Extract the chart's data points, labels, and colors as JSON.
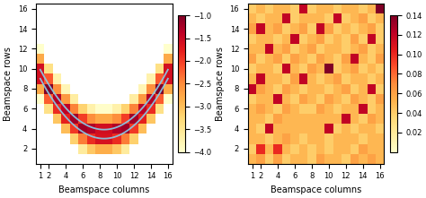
{
  "xlabel": "Beamspace columns",
  "ylabel": "Beamspace rows",
  "cmap1": "YlOrRd",
  "cmap2": "YlOrRd",
  "vmin1": -4.0,
  "vmax1": -1.0,
  "vmin2": 0.0,
  "vmax2": 0.14,
  "figsize": [
    4.74,
    2.21
  ],
  "dpi": 100,
  "curve_color": "#87CEEB",
  "left_xticks": [
    1,
    2,
    4,
    6,
    8,
    10,
    12,
    14,
    16
  ],
  "left_yticks": [
    2,
    4,
    6,
    8,
    10,
    12,
    14,
    16
  ],
  "right_xticks": [
    1,
    2,
    4,
    6,
    8,
    10,
    12,
    14,
    16
  ],
  "right_yticks": [
    2,
    4,
    6,
    8,
    10,
    12,
    14,
    16
  ],
  "cb1_ticks": [
    -1.0,
    -1.5,
    -2.0,
    -2.5,
    -3.0,
    -3.5,
    -4.0
  ],
  "cb2_ticks": [
    0.02,
    0.04,
    0.06,
    0.08,
    0.1,
    0.12,
    0.14
  ]
}
